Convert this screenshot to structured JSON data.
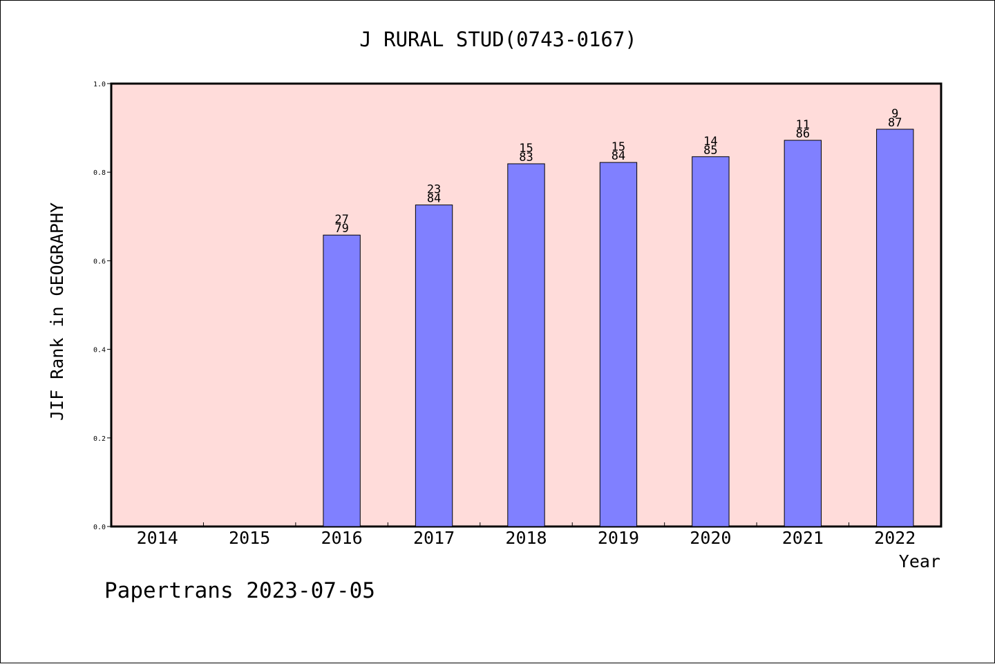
{
  "chart_data": {
    "type": "bar",
    "title": "J RURAL STUD(0743-0167)",
    "xlabel": "Year",
    "ylabel": "JIF Rank in GEOGRAPHY",
    "categories": [
      "2014",
      "2015",
      "2016",
      "2017",
      "2018",
      "2019",
      "2020",
      "2021",
      "2022"
    ],
    "values": [
      null,
      null,
      0.658,
      0.726,
      0.819,
      0.822,
      0.835,
      0.872,
      0.897
    ],
    "bar_labels": [
      null,
      null,
      {
        "rank": "27",
        "total": "79"
      },
      {
        "rank": "23",
        "total": "84"
      },
      {
        "rank": "15",
        "total": "83"
      },
      {
        "rank": "15",
        "total": "84"
      },
      {
        "rank": "14",
        "total": "85"
      },
      {
        "rank": "11",
        "total": "86"
      },
      {
        "rank": "9",
        "total": "87"
      }
    ],
    "ylim": [
      0,
      1.0
    ],
    "yticks": [
      "0.0",
      "0.2",
      "0.4",
      "0.6",
      "0.8",
      "1.0"
    ],
    "grid": false,
    "legend": "none",
    "footer": "Papertrans 2023-07-05",
    "colors": {
      "plot_background": "#FFDCDA",
      "bar_fill": "#8080FF",
      "bar_stroke": "#000000",
      "axis": "#000000"
    }
  }
}
